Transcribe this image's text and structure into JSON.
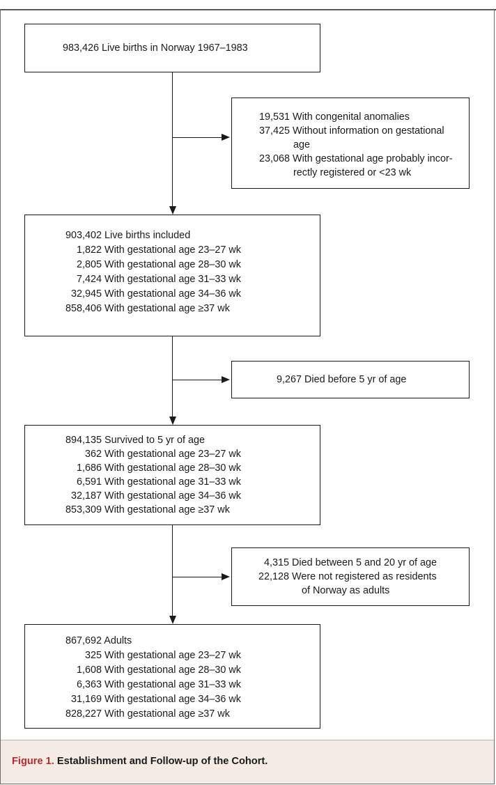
{
  "figure": {
    "label": "Figure 1.",
    "title": "Establishment and Follow-up of the Cohort."
  },
  "boxes": {
    "births": {
      "text": "983,426 Live births in Norway 1967–1983"
    },
    "exclusions": {
      "lines": [
        [
          "19,531",
          "With congenital anomalies"
        ],
        [
          "37,425",
          "Without information on gestational"
        ],
        [
          "",
          "age"
        ],
        [
          "23,068",
          "With gestational age probably incor-"
        ],
        [
          "",
          "rectly registered or <23 wk"
        ]
      ]
    },
    "included": {
      "lines": [
        [
          "903,402",
          "Live births included"
        ],
        [
          "1,822",
          "With gestational age 23–27 wk"
        ],
        [
          "2,805",
          "With gestational age 28–30 wk"
        ],
        [
          "7,424",
          "With gestational age 31–33 wk"
        ],
        [
          "32,945",
          "With gestational age 34–36 wk"
        ],
        [
          "858,406",
          "With gestational age ≥37 wk"
        ]
      ]
    },
    "died_before_5": {
      "text": "9,267 Died before 5 yr of age"
    },
    "survived_5": {
      "lines": [
        [
          "894,135",
          "Survived to 5 yr of age"
        ],
        [
          "362",
          "With gestational age 23–27 wk"
        ],
        [
          "1,686",
          "With gestational age 28–30 wk"
        ],
        [
          "6,591",
          "With gestational age 31–33 wk"
        ],
        [
          "32,187",
          "With gestational age 34–36 wk"
        ],
        [
          "853,309",
          "With gestational age ≥37 wk"
        ]
      ]
    },
    "died_5_20": {
      "lines": [
        [
          "4,315",
          "Died between 5 and 20 yr of age"
        ],
        [
          "22,128",
          "Were not registered as residents"
        ],
        [
          "",
          "of Norway as adults"
        ]
      ]
    },
    "adults": {
      "lines": [
        [
          "867,692",
          "Adults"
        ],
        [
          "325",
          "With gestational age 23–27 wk"
        ],
        [
          "1,608",
          "With gestational age 28–30 wk"
        ],
        [
          "6,363",
          "With gestational age 31–33 wk"
        ],
        [
          "31,169",
          "With gestational age 34–36 wk"
        ],
        [
          "828,227",
          "With gestational age ≥37 wk"
        ]
      ]
    }
  },
  "colors": {
    "caption_bg": "#f4ece4",
    "label": "#c0272d",
    "line": "#1a1a1a"
  }
}
